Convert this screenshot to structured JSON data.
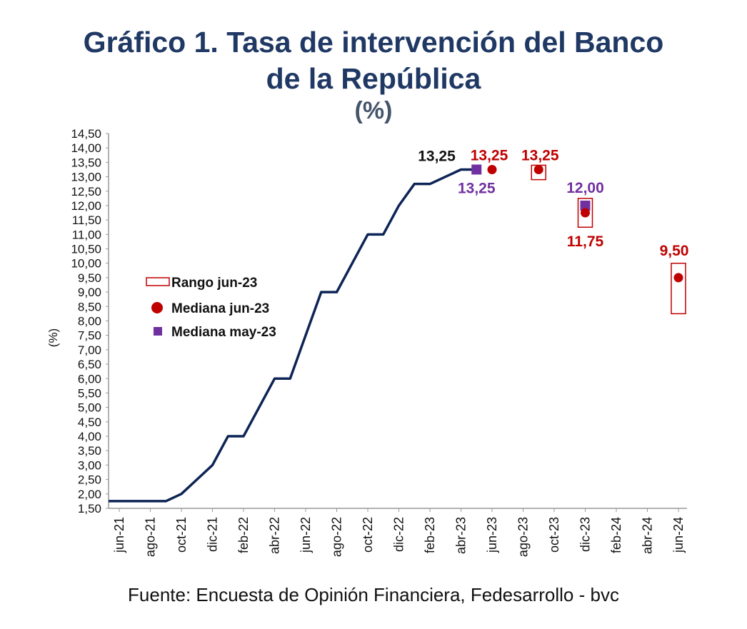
{
  "chart_data": {
    "type": "line",
    "title": "Gráfico 1. Tasa de intervención del Banco de la República",
    "title_line1": "Gráfico 1. Tasa de intervención del Banco",
    "title_line2": "de la República",
    "subtitle": "(%)",
    "ylabel": "(%)",
    "xlabel": "",
    "ylim": [
      1.5,
      14.5
    ],
    "ytick_step": 0.5,
    "yticks": [
      "1,50",
      "2,00",
      "2,50",
      "3,00",
      "3,50",
      "4,00",
      "4,50",
      "5,00",
      "5,50",
      "6,00",
      "6,50",
      "7,00",
      "7,50",
      "8,00",
      "8,50",
      "9,00",
      "9,50",
      "10,00",
      "10,50",
      "11,00",
      "11,50",
      "12,00",
      "12,50",
      "13,00",
      "13,50",
      "14,00",
      "14,50"
    ],
    "months": [
      "jun-21",
      "jul-21",
      "ago-21",
      "sep-21",
      "oct-21",
      "nov-21",
      "dic-21",
      "ene-22",
      "feb-22",
      "mar-22",
      "abr-22",
      "may-22",
      "jun-22",
      "jul-22",
      "ago-22",
      "sep-22",
      "oct-22",
      "nov-22",
      "dic-22",
      "ene-23",
      "feb-23",
      "mar-23",
      "abr-23",
      "may-23",
      "jun-23",
      "jul-23",
      "ago-23",
      "sep-23",
      "oct-23",
      "nov-23",
      "dic-23",
      "ene-24",
      "feb-24",
      "mar-24",
      "abr-24",
      "may-24",
      "jun-24"
    ],
    "xticks": [
      "jun-21",
      "ago-21",
      "oct-21",
      "dic-21",
      "feb-22",
      "abr-22",
      "jun-22",
      "ago-22",
      "oct-22",
      "dic-22",
      "feb-23",
      "abr-23",
      "jun-23",
      "ago-23",
      "oct-23",
      "dic-23",
      "feb-24",
      "abr-24",
      "jun-24"
    ],
    "grid": false,
    "legend_position": "center-left",
    "series": [
      {
        "name": "Tasa de intervención",
        "color": "#0d2456",
        "x": [
          "jun-21",
          "jul-21",
          "ago-21",
          "sep-21",
          "oct-21",
          "nov-21",
          "dic-21",
          "ene-22",
          "feb-22",
          "mar-22",
          "abr-22",
          "may-22",
          "jun-22",
          "jul-22",
          "ago-22",
          "sep-22",
          "oct-22",
          "nov-22",
          "dic-22",
          "ene-23",
          "feb-23",
          "mar-23",
          "abr-23",
          "may-23"
        ],
        "values": [
          1.75,
          1.75,
          1.75,
          1.75,
          2.0,
          2.5,
          3.0,
          4.0,
          4.0,
          5.0,
          6.0,
          6.0,
          7.5,
          9.0,
          9.0,
          10.0,
          11.0,
          11.0,
          12.0,
          12.75,
          12.75,
          13.0,
          13.25,
          13.25
        ],
        "last_label": "13,25"
      },
      {
        "name": "Rango jun-23",
        "color": "#c00000",
        "x": [
          "sep-23",
          "dic-23",
          "jun-24"
        ],
        "low": [
          12.9,
          11.25,
          8.25
        ],
        "high": [
          13.4,
          12.25,
          10.0
        ]
      },
      {
        "name": "Mediana jun-23",
        "color": "#c00000",
        "x": [
          "jun-23",
          "sep-23",
          "dic-23",
          "jun-24"
        ],
        "values": [
          13.25,
          13.25,
          11.75,
          9.5
        ],
        "labels": [
          "13,25",
          "13,25",
          "11,75",
          "9,50"
        ]
      },
      {
        "name": "Mediana may-23",
        "color": "#7030a0",
        "x": [
          "may-23",
          "dic-23"
        ],
        "values": [
          13.25,
          12.0
        ],
        "labels": [
          "13,25",
          "12,00"
        ]
      }
    ]
  },
  "source": "Fuente: Encuesta de Opinión Financiera, Fedesarrollo - bvc"
}
